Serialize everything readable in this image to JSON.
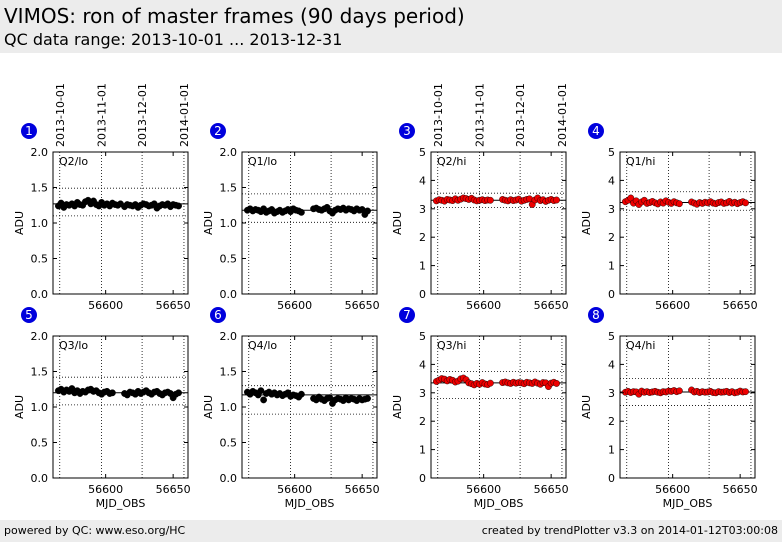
{
  "header": {
    "title": "VIMOS: ron of master frames (90 days period)",
    "subtitle": "QC data range: 2013-10-01 ... 2013-12-31"
  },
  "footer": {
    "left": "powered by QC: www.eso.org/HC",
    "right": "created by trendPlotter v3.3 on 2014-01-12T03:00:08"
  },
  "colors": {
    "black_series": "#000000",
    "red_series": "#ee0000",
    "badge": "#0000dd"
  },
  "date_ticks": [
    "2013-10-01",
    "2013-11-01",
    "2013-12-01",
    "2014-01-01"
  ],
  "chart_data": [
    {
      "type": "scatter",
      "badge": "1",
      "label": "Q2/lo",
      "color": "black",
      "xlim": [
        56561,
        56661
      ],
      "ylim": [
        0,
        2.0
      ],
      "yticks": [
        "0.0",
        "0.5",
        "1.0",
        "1.5",
        "2.0"
      ],
      "xticks": [
        "56600",
        "56650"
      ],
      "ylabel": "ADU",
      "xlabel": "",
      "ref_lines": [
        1.27,
        1.49,
        1.1
      ],
      "x": [
        56565,
        56567,
        56569,
        56571,
        56573,
        56575,
        56577,
        56579,
        56581,
        56583,
        56585,
        56587,
        56589,
        56591,
        56593,
        56595,
        56597,
        56599,
        56601,
        56603,
        56605,
        56607,
        56609,
        56611,
        56614,
        56616,
        56618,
        56620,
        56622,
        56624,
        56626,
        56628,
        56630,
        56632,
        56634,
        56636,
        56638,
        56640,
        56642,
        56644,
        56646,
        56648,
        56650,
        56652,
        56654
      ],
      "y": [
        1.24,
        1.28,
        1.22,
        1.26,
        1.25,
        1.27,
        1.24,
        1.29,
        1.26,
        1.25,
        1.3,
        1.32,
        1.27,
        1.31,
        1.26,
        1.24,
        1.29,
        1.25,
        1.27,
        1.24,
        1.28,
        1.26,
        1.25,
        1.27,
        1.23,
        1.26,
        1.25,
        1.24,
        1.26,
        1.22,
        1.25,
        1.27,
        1.26,
        1.24,
        1.25,
        1.27,
        1.21,
        1.24,
        1.26,
        1.25,
        1.27,
        1.23,
        1.26,
        1.25,
        1.24
      ]
    },
    {
      "type": "scatter",
      "badge": "2",
      "label": "Q1/lo",
      "color": "black",
      "xlim": [
        56561,
        56661
      ],
      "ylim": [
        0,
        2.0
      ],
      "yticks": [
        "0.0",
        "0.5",
        "1.0",
        "1.5",
        "2.0"
      ],
      "xticks": [
        "56600",
        "56650"
      ],
      "ylabel": "ADU",
      "xlabel": "",
      "ref_lines": [
        1.18,
        1.41,
        1.01
      ],
      "x": [
        56565,
        56567,
        56569,
        56571,
        56573,
        56575,
        56577,
        56579,
        56581,
        56583,
        56585,
        56587,
        56589,
        56591,
        56593,
        56595,
        56597,
        56599,
        56601,
        56603,
        56605,
        56614,
        56616,
        56618,
        56620,
        56622,
        56624,
        56626,
        56628,
        56630,
        56632,
        56634,
        56636,
        56638,
        56640,
        56642,
        56644,
        56646,
        56648,
        56650,
        56652,
        56654
      ],
      "y": [
        1.18,
        1.2,
        1.17,
        1.19,
        1.18,
        1.16,
        1.2,
        1.15,
        1.17,
        1.19,
        1.14,
        1.16,
        1.18,
        1.15,
        1.17,
        1.19,
        1.16,
        1.2,
        1.18,
        1.17,
        1.15,
        1.2,
        1.21,
        1.19,
        1.18,
        1.2,
        1.22,
        1.17,
        1.14,
        1.18,
        1.2,
        1.19,
        1.21,
        1.18,
        1.2,
        1.19,
        1.17,
        1.2,
        1.18,
        1.19,
        1.12,
        1.17
      ]
    },
    {
      "type": "scatter",
      "badge": "3",
      "label": "Q2/hi",
      "color": "red",
      "xlim": [
        56561,
        56661
      ],
      "ylim": [
        0,
        5
      ],
      "yticks": [
        "0",
        "1",
        "2",
        "3",
        "4",
        "5"
      ],
      "xticks": [
        "56600",
        "56650"
      ],
      "ylabel": "ADU",
      "xlabel": "",
      "ref_lines": [
        3.3,
        3.55,
        3.05
      ],
      "x": [
        56565,
        56567,
        56569,
        56571,
        56573,
        56575,
        56577,
        56579,
        56581,
        56583,
        56585,
        56587,
        56589,
        56591,
        56593,
        56595,
        56597,
        56599,
        56601,
        56603,
        56605,
        56614,
        56616,
        56618,
        56620,
        56622,
        56624,
        56626,
        56628,
        56630,
        56632,
        56634,
        56636,
        56638,
        56640,
        56642,
        56644,
        56646,
        56648,
        56650,
        56652,
        56654
      ],
      "y": [
        3.28,
        3.32,
        3.3,
        3.27,
        3.33,
        3.31,
        3.29,
        3.35,
        3.3,
        3.34,
        3.38,
        3.36,
        3.33,
        3.37,
        3.31,
        3.28,
        3.3,
        3.32,
        3.29,
        3.31,
        3.3,
        3.33,
        3.3,
        3.28,
        3.32,
        3.29,
        3.31,
        3.34,
        3.27,
        3.3,
        3.33,
        3.35,
        3.15,
        3.31,
        3.38,
        3.29,
        3.32,
        3.26,
        3.3,
        3.33,
        3.29,
        3.31
      ]
    },
    {
      "type": "scatter",
      "badge": "4",
      "label": "Q1/hi",
      "color": "red",
      "xlim": [
        56561,
        56661
      ],
      "ylim": [
        0,
        5
      ],
      "yticks": [
        "0",
        "1",
        "2",
        "3",
        "4",
        "5"
      ],
      "xticks": [
        "56600",
        "56650"
      ],
      "ylabel": "ADU",
      "xlabel": "",
      "ref_lines": [
        3.22,
        3.6,
        2.95
      ],
      "x": [
        56565,
        56567,
        56569,
        56571,
        56573,
        56575,
        56577,
        56579,
        56581,
        56583,
        56585,
        56587,
        56589,
        56591,
        56593,
        56595,
        56597,
        56599,
        56601,
        56603,
        56605,
        56614,
        56616,
        56618,
        56620,
        56622,
        56624,
        56626,
        56628,
        56630,
        56632,
        56634,
        56636,
        56638,
        56640,
        56642,
        56644,
        56646,
        56648,
        56650,
        56652,
        56654
      ],
      "y": [
        3.25,
        3.3,
        3.38,
        3.2,
        3.28,
        3.15,
        3.24,
        3.3,
        3.19,
        3.22,
        3.26,
        3.21,
        3.17,
        3.24,
        3.2,
        3.28,
        3.23,
        3.19,
        3.25,
        3.21,
        3.18,
        3.24,
        3.2,
        3.16,
        3.22,
        3.19,
        3.23,
        3.21,
        3.25,
        3.2,
        3.18,
        3.22,
        3.24,
        3.19,
        3.21,
        3.26,
        3.2,
        3.23,
        3.18,
        3.22,
        3.25,
        3.21
      ]
    },
    {
      "type": "scatter",
      "badge": "5",
      "label": "Q3/lo",
      "color": "black",
      "xlim": [
        56561,
        56661
      ],
      "ylim": [
        0,
        2.0
      ],
      "yticks": [
        "0.0",
        "0.5",
        "1.0",
        "1.5",
        "2.0"
      ],
      "xticks": [
        "56600",
        "56650"
      ],
      "ylabel": "ADU",
      "xlabel": "MJD_OBS",
      "ref_lines": [
        1.2,
        1.42,
        1.03
      ],
      "x": [
        56565,
        56567,
        56569,
        56571,
        56573,
        56575,
        56577,
        56579,
        56581,
        56583,
        56585,
        56587,
        56589,
        56591,
        56593,
        56595,
        56597,
        56599,
        56601,
        56603,
        56605,
        56614,
        56616,
        56618,
        56620,
        56622,
        56624,
        56626,
        56628,
        56630,
        56632,
        56634,
        56636,
        56638,
        56640,
        56642,
        56644,
        56646,
        56648,
        56650,
        56652,
        56654
      ],
      "y": [
        1.23,
        1.25,
        1.21,
        1.24,
        1.22,
        1.26,
        1.2,
        1.23,
        1.19,
        1.22,
        1.21,
        1.24,
        1.25,
        1.22,
        1.23,
        1.2,
        1.18,
        1.21,
        1.22,
        1.19,
        1.2,
        1.19,
        1.17,
        1.21,
        1.2,
        1.18,
        1.22,
        1.19,
        1.21,
        1.23,
        1.2,
        1.18,
        1.21,
        1.22,
        1.19,
        1.17,
        1.2,
        1.21,
        1.19,
        1.13,
        1.18,
        1.2
      ]
    },
    {
      "type": "scatter",
      "badge": "6",
      "label": "Q4/lo",
      "color": "black",
      "xlim": [
        56561,
        56661
      ],
      "ylim": [
        0,
        2.0
      ],
      "yticks": [
        "0.0",
        "0.5",
        "1.0",
        "1.5",
        "2.0"
      ],
      "xticks": [
        "56600",
        "56650"
      ],
      "ylabel": "ADU",
      "xlabel": "MJD_OBS",
      "ref_lines": [
        1.17,
        1.3,
        0.9
      ],
      "x": [
        56565,
        56567,
        56569,
        56571,
        56573,
        56575,
        56577,
        56579,
        56581,
        56583,
        56585,
        56587,
        56589,
        56591,
        56593,
        56595,
        56597,
        56599,
        56601,
        56603,
        56605,
        56614,
        56616,
        56618,
        56620,
        56622,
        56624,
        56626,
        56628,
        56630,
        56632,
        56634,
        56636,
        56638,
        56640,
        56642,
        56644,
        56646,
        56648,
        56650,
        56652,
        56654
      ],
      "y": [
        1.21,
        1.18,
        1.22,
        1.2,
        1.17,
        1.23,
        1.1,
        1.19,
        1.21,
        1.18,
        1.2,
        1.17,
        1.19,
        1.16,
        1.18,
        1.2,
        1.15,
        1.17,
        1.16,
        1.14,
        1.18,
        1.12,
        1.1,
        1.14,
        1.11,
        1.09,
        1.12,
        1.13,
        1.05,
        1.1,
        1.12,
        1.11,
        1.09,
        1.13,
        1.1,
        1.12,
        1.11,
        1.09,
        1.12,
        1.1,
        1.11,
        1.12
      ]
    },
    {
      "type": "scatter",
      "badge": "7",
      "label": "Q3/hi",
      "color": "red",
      "xlim": [
        56561,
        56661
      ],
      "ylim": [
        0,
        5
      ],
      "yticks": [
        "0",
        "1",
        "2",
        "3",
        "4",
        "5"
      ],
      "xticks": [
        "56600",
        "56650"
      ],
      "ylabel": "ADU",
      "xlabel": "MJD_OBS",
      "ref_lines": [
        3.35,
        3.75,
        2.8
      ],
      "x": [
        56565,
        56567,
        56569,
        56571,
        56573,
        56575,
        56577,
        56579,
        56581,
        56583,
        56585,
        56587,
        56589,
        56591,
        56593,
        56595,
        56597,
        56599,
        56601,
        56603,
        56605,
        56614,
        56616,
        56618,
        56620,
        56622,
        56624,
        56626,
        56628,
        56630,
        56632,
        56634,
        56636,
        56638,
        56640,
        56642,
        56644,
        56646,
        56648,
        56650,
        56652,
        56654
      ],
      "y": [
        3.4,
        3.45,
        3.5,
        3.48,
        3.42,
        3.47,
        3.44,
        3.38,
        3.41,
        3.49,
        3.52,
        3.46,
        3.35,
        3.32,
        3.28,
        3.33,
        3.3,
        3.36,
        3.31,
        3.29,
        3.34,
        3.36,
        3.38,
        3.35,
        3.33,
        3.37,
        3.34,
        3.36,
        3.35,
        3.32,
        3.37,
        3.35,
        3.33,
        3.38,
        3.34,
        3.3,
        3.36,
        3.35,
        3.22,
        3.34,
        3.37,
        3.33
      ]
    },
    {
      "type": "scatter",
      "badge": "8",
      "label": "Q4/hi",
      "color": "red",
      "xlim": [
        56561,
        56661
      ],
      "ylim": [
        0,
        5
      ],
      "yticks": [
        "0",
        "1",
        "2",
        "3",
        "4",
        "5"
      ],
      "xticks": [
        "56600",
        "56650"
      ],
      "ylabel": "ADU",
      "xlabel": "MJD_OBS",
      "ref_lines": [
        3.03,
        3.5,
        2.55
      ],
      "x": [
        56565,
        56567,
        56569,
        56571,
        56573,
        56575,
        56577,
        56579,
        56581,
        56583,
        56585,
        56587,
        56589,
        56591,
        56593,
        56595,
        56597,
        56599,
        56601,
        56603,
        56605,
        56614,
        56616,
        56618,
        56620,
        56622,
        56624,
        56626,
        56628,
        56630,
        56632,
        56634,
        56636,
        56638,
        56640,
        56642,
        56644,
        56646,
        56648,
        56650,
        56652,
        56654
      ],
      "y": [
        3.02,
        3.05,
        3.01,
        3.04,
        3.03,
        2.95,
        3.06,
        3.02,
        3.04,
        3.01,
        3.03,
        3.05,
        3.02,
        3.0,
        3.04,
        3.03,
        3.06,
        3.05,
        3.08,
        3.04,
        3.07,
        3.1,
        3.03,
        3.05,
        3.01,
        3.04,
        3.02,
        3.03,
        3.05,
        3.01,
        3.0,
        3.04,
        3.02,
        3.03,
        3.05,
        3.01,
        3.04,
        3.0,
        3.02,
        3.06,
        3.03,
        3.04
      ]
    }
  ]
}
